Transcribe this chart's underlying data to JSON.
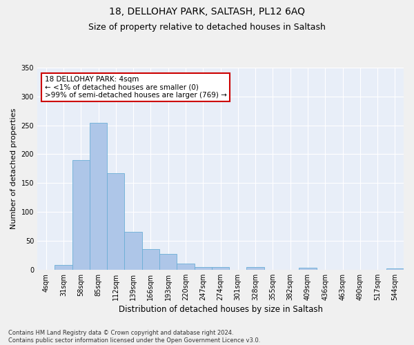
{
  "title": "18, DELLOHAY PARK, SALTASH, PL12 6AQ",
  "subtitle": "Size of property relative to detached houses in Saltash",
  "xlabel": "Distribution of detached houses by size in Saltash",
  "ylabel": "Number of detached properties",
  "bar_labels": [
    "4sqm",
    "31sqm",
    "58sqm",
    "85sqm",
    "112sqm",
    "139sqm",
    "166sqm",
    "193sqm",
    "220sqm",
    "247sqm",
    "274sqm",
    "301sqm",
    "328sqm",
    "355sqm",
    "382sqm",
    "409sqm",
    "436sqm",
    "463sqm",
    "490sqm",
    "517sqm",
    "544sqm"
  ],
  "bar_values": [
    0,
    8,
    190,
    254,
    167,
    65,
    36,
    27,
    11,
    5,
    4,
    0,
    4,
    0,
    0,
    3,
    0,
    0,
    0,
    0,
    2
  ],
  "bar_color": "#aec6e8",
  "bar_edge_color": "#6baed6",
  "background_color": "#e8eef8",
  "grid_color": "#ffffff",
  "annotation_box_text": "18 DELLOHAY PARK: 4sqm\n← <1% of detached houses are smaller (0)\n>99% of semi-detached houses are larger (769) →",
  "annotation_box_color": "#ffffff",
  "annotation_box_edge_color": "#cc0000",
  "ylim": [
    0,
    350
  ],
  "yticks": [
    0,
    50,
    100,
    150,
    200,
    250,
    300,
    350
  ],
  "footnote": "Contains HM Land Registry data © Crown copyright and database right 2024.\nContains public sector information licensed under the Open Government Licence v3.0.",
  "title_fontsize": 10,
  "subtitle_fontsize": 9,
  "ylabel_fontsize": 8,
  "xlabel_fontsize": 8.5,
  "tick_fontsize": 7,
  "annotation_fontsize": 7.5,
  "footnote_fontsize": 6
}
